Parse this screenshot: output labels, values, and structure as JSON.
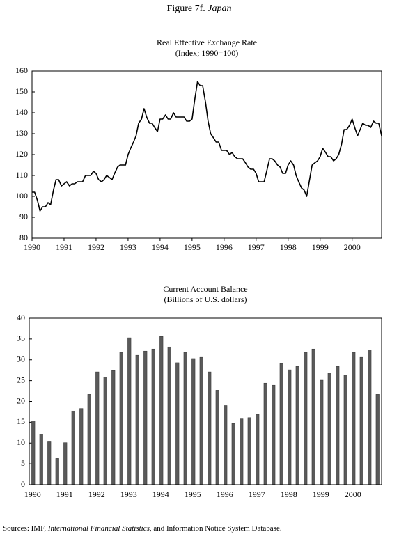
{
  "figure": {
    "label": "Figure 7f.",
    "country": "Japan"
  },
  "source": {
    "prefix": "Sources: IMF,",
    "publication": "International Financial Statistics",
    "suffix": ", and Information Notice System Database."
  },
  "chart_data": [
    {
      "type": "line",
      "title": "Real Effective Exchange Rate",
      "subtitle": "(Index; 1990=100)",
      "color": "#000000",
      "xlim": [
        1990,
        2000.92
      ],
      "xticks": [
        1990,
        1991,
        1992,
        1993,
        1994,
        1995,
        1996,
        1997,
        1998,
        1999,
        2000
      ],
      "ylim": [
        80,
        160
      ],
      "yticks": [
        80,
        90,
        100,
        110,
        120,
        130,
        140,
        150,
        160
      ],
      "x": [
        1990.0,
        1990.08,
        1990.17,
        1990.25,
        1990.33,
        1990.42,
        1990.5,
        1990.58,
        1990.67,
        1990.75,
        1990.83,
        1990.92,
        1991.0,
        1991.08,
        1991.17,
        1991.25,
        1991.33,
        1991.42,
        1991.5,
        1991.58,
        1991.67,
        1991.75,
        1991.83,
        1991.92,
        1992.0,
        1992.08,
        1992.17,
        1992.25,
        1992.33,
        1992.42,
        1992.5,
        1992.58,
        1992.67,
        1992.75,
        1992.83,
        1992.92,
        1993.0,
        1993.08,
        1993.17,
        1993.25,
        1993.33,
        1993.42,
        1993.5,
        1993.58,
        1993.67,
        1993.75,
        1993.83,
        1993.92,
        1994.0,
        1994.08,
        1994.17,
        1994.25,
        1994.33,
        1994.42,
        1994.5,
        1994.58,
        1994.67,
        1994.75,
        1994.83,
        1994.92,
        1995.0,
        1995.08,
        1995.17,
        1995.25,
        1995.33,
        1995.42,
        1995.5,
        1995.58,
        1995.67,
        1995.75,
        1995.83,
        1995.92,
        1996.0,
        1996.08,
        1996.17,
        1996.25,
        1996.33,
        1996.42,
        1996.5,
        1996.58,
        1996.67,
        1996.75,
        1996.83,
        1996.92,
        1997.0,
        1997.08,
        1997.17,
        1997.25,
        1997.33,
        1997.42,
        1997.5,
        1997.58,
        1997.67,
        1997.75,
        1997.83,
        1997.92,
        1998.0,
        1998.08,
        1998.17,
        1998.25,
        1998.33,
        1998.42,
        1998.5,
        1998.58,
        1998.67,
        1998.75,
        1998.83,
        1998.92,
        1999.0,
        1999.08,
        1999.17,
        1999.25,
        1999.33,
        1999.42,
        1999.5,
        1999.58,
        1999.67,
        1999.75,
        1999.83,
        1999.92,
        2000.0,
        2000.08,
        2000.17,
        2000.25,
        2000.33,
        2000.42,
        2000.5,
        2000.58,
        2000.67,
        2000.75,
        2000.83,
        2000.92
      ],
      "values": [
        102,
        102,
        98,
        93,
        95,
        95,
        97,
        96,
        103,
        108,
        108,
        105,
        106,
        107,
        105,
        106,
        106,
        107,
        107,
        107,
        110,
        110,
        110,
        112,
        111,
        108,
        107,
        108,
        110,
        109,
        108,
        111,
        114,
        115,
        115,
        115,
        120,
        123,
        126,
        129,
        135,
        137,
        142,
        138,
        135,
        135,
        133,
        131,
        137,
        137,
        139,
        137,
        137,
        140,
        138,
        138,
        138,
        138,
        136,
        136,
        137,
        146,
        155,
        153,
        153,
        145,
        136,
        130,
        128,
        126,
        126,
        122,
        122,
        122,
        120,
        121,
        119,
        118,
        118,
        118,
        116,
        114,
        113,
        113,
        111,
        107,
        107,
        107,
        112,
        118,
        118,
        117,
        115,
        114,
        111,
        111,
        115,
        117,
        115,
        110,
        107,
        104,
        103,
        100,
        108,
        115,
        116,
        117,
        119,
        123,
        121,
        119,
        119,
        117,
        118,
        120,
        125,
        132,
        132,
        134,
        137,
        133,
        129,
        132,
        135,
        134,
        134,
        133,
        136,
        135,
        135,
        129
      ]
    },
    {
      "type": "bar",
      "title": "Current Account Balance",
      "subtitle": "(Billions of U.S. dollars)",
      "color": "#5a5a5a",
      "ylim": [
        0,
        40
      ],
      "yticks": [
        0,
        5,
        10,
        15,
        20,
        25,
        30,
        35,
        40
      ],
      "categories": [
        "1990",
        null,
        null,
        null,
        "1991",
        null,
        null,
        null,
        "1992",
        null,
        null,
        null,
        "1993",
        null,
        null,
        null,
        "1994",
        null,
        null,
        null,
        "1995",
        null,
        null,
        null,
        "1996",
        null,
        null,
        null,
        "1997",
        null,
        null,
        null,
        "1998",
        null,
        null,
        null,
        "1999",
        null,
        null,
        null,
        "2000",
        null,
        null,
        null
      ],
      "values": [
        15.3,
        12.1,
        10.3,
        6.3,
        10.1,
        17.7,
        18.3,
        21.7,
        27.1,
        25.9,
        27.4,
        31.8,
        35.3,
        31.1,
        32.1,
        32.6,
        35.6,
        33.1,
        29.3,
        31.8,
        30.3,
        30.6,
        27.1,
        22.7,
        19.0,
        14.7,
        15.8,
        16.1,
        16.9,
        24.4,
        23.9,
        29.1,
        27.6,
        28.4,
        31.8,
        32.6,
        25.1,
        26.8,
        28.4,
        26.3,
        31.8,
        30.6,
        32.4,
        21.7
      ]
    }
  ]
}
